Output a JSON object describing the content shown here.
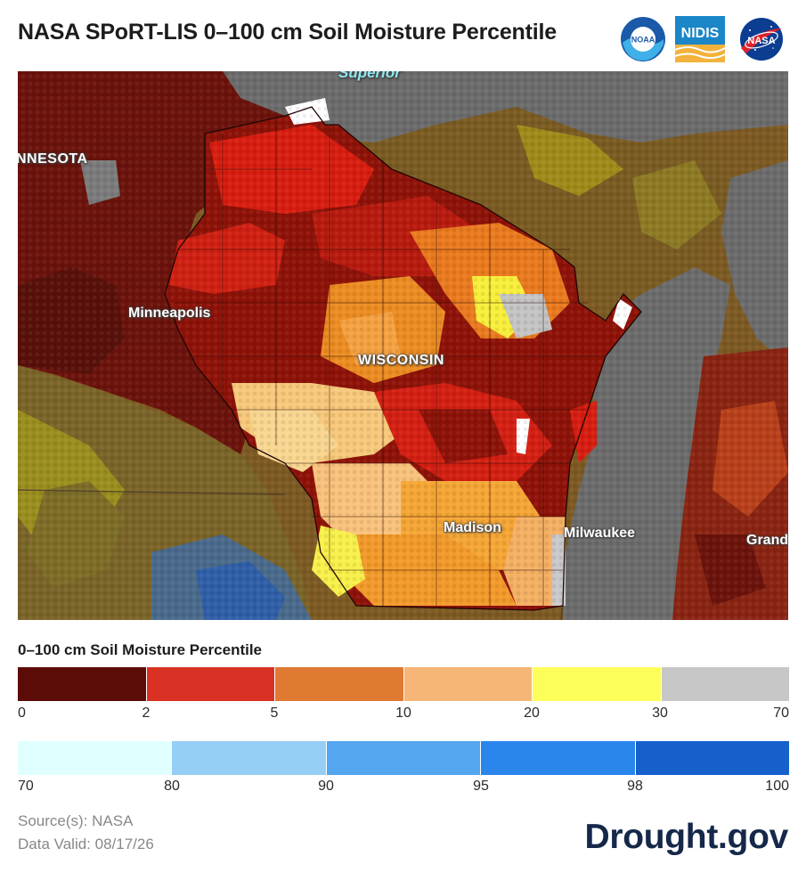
{
  "title": "NASA SPoRT-LIS 0–100 cm Soil Moisture Percentile",
  "logos": {
    "noaa": "NOAA",
    "nidis": "NIDIS",
    "nasa": "NASA"
  },
  "map": {
    "labels": {
      "superior": "Superior",
      "minnesota": "NNESOTA",
      "minneapolis": "Minneapolis",
      "wisconsin": "WISCONSIN",
      "madison": "Madison",
      "milwaukee": "Milwaukee",
      "grand": "Grand"
    }
  },
  "legend": {
    "title": "0–100 cm Soil Moisture Percentile",
    "dry": {
      "colors": [
        "#5c0c06",
        "#d93224",
        "#e07a32",
        "#f6b678",
        "#fefe5a",
        "#c7c7c7"
      ],
      "ticks": [
        "0",
        "2",
        "5",
        "10",
        "20",
        "30",
        "70"
      ]
    },
    "wet": {
      "colors": [
        "#e0ffff",
        "#96cef5",
        "#54a6ee",
        "#2b86ec",
        "#1660cc"
      ],
      "ticks": [
        "70",
        "80",
        "90",
        "95",
        "98",
        "100"
      ]
    }
  },
  "footer": {
    "source": "Source(s): NASA",
    "valid": "Data Valid: 08/17/26",
    "brand": "Drought.gov"
  }
}
